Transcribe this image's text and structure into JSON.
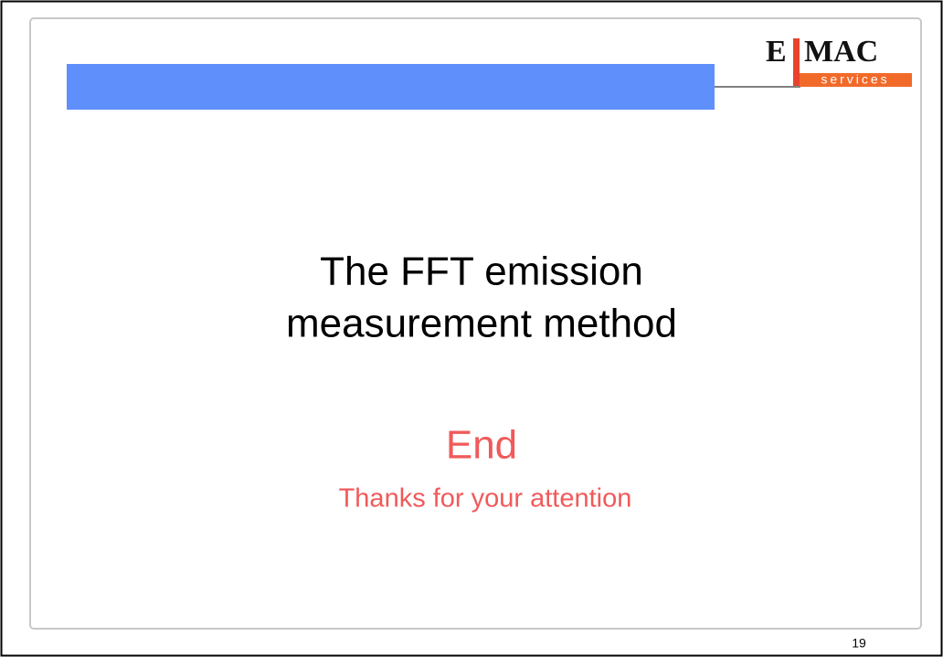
{
  "logo": {
    "left": "E",
    "right": "MAC",
    "tagline": "services"
  },
  "title": {
    "lines": [
      "The FFT emission",
      "measurement method"
    ]
  },
  "closing": {
    "heading": "End",
    "subtitle": "Thanks for your attention"
  },
  "page_number": "19"
}
